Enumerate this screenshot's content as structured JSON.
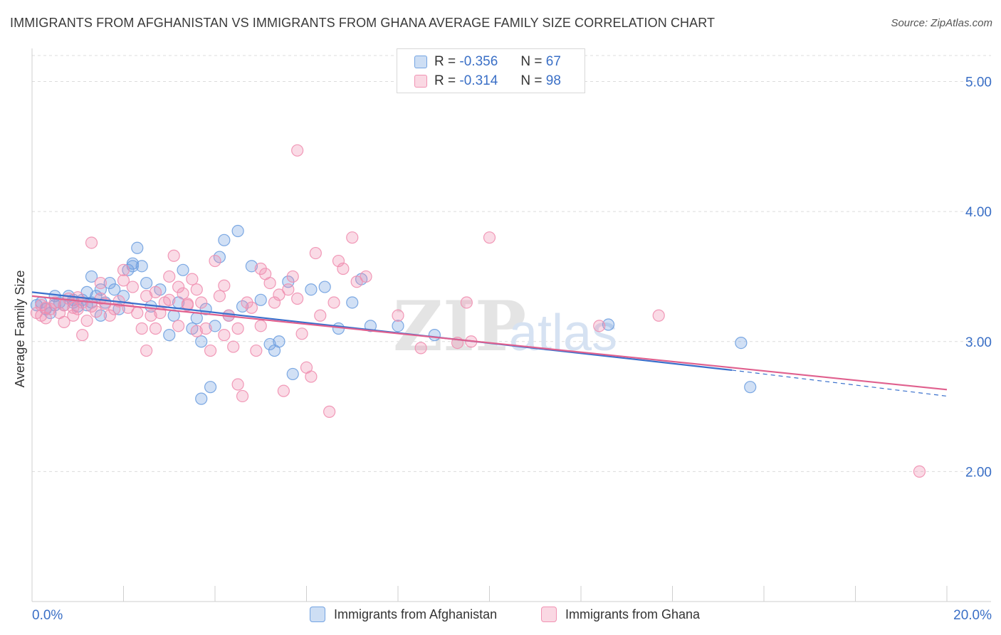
{
  "title": "IMMIGRANTS FROM AFGHANISTAN VS IMMIGRANTS FROM GHANA AVERAGE FAMILY SIZE CORRELATION CHART",
  "source": "Source: ZipAtlas.com",
  "watermark": {
    "zip": "ZIP",
    "atlas": "atlas"
  },
  "legend": {
    "rows": [
      {
        "r_label": "R =",
        "r_value": "-0.356",
        "n_label": "N =",
        "n_value": "67",
        "color": "#6fa0e0"
      },
      {
        "r_label": "R =",
        "r_value": "-0.314",
        "n_label": "N =",
        "n_value": "98",
        "color": "#f08fb0"
      }
    ]
  },
  "chart_data": {
    "type": "scatter",
    "ylabel": "Average Family Size",
    "xlim": [
      0,
      20
    ],
    "ylim": [
      1.0,
      5.2
    ],
    "x_tick_labels": {
      "min": "0.0%",
      "max": "20.0%"
    },
    "y_ticks": [
      2.0,
      3.0,
      4.0,
      5.0
    ],
    "y_tick_labels": [
      "2.00",
      "3.00",
      "4.00",
      "5.00"
    ],
    "grid": "horizontal dashed",
    "series": [
      {
        "name": "Immigrants from Afghanistan",
        "color": "#6fa0e0",
        "line_color": "#3a70cc",
        "trend": {
          "x0": 0,
          "y0": 3.38,
          "x1": 15.3,
          "y1": 2.78,
          "dash_to_x": 20,
          "dash_to_y": 2.58
        },
        "points": [
          [
            0.1,
            3.28
          ],
          [
            0.2,
            3.3
          ],
          [
            0.3,
            3.25
          ],
          [
            0.4,
            3.22
          ],
          [
            0.5,
            3.35
          ],
          [
            0.6,
            3.3
          ],
          [
            0.7,
            3.28
          ],
          [
            0.8,
            3.35
          ],
          [
            0.9,
            3.3
          ],
          [
            1.0,
            3.27
          ],
          [
            1.1,
            3.32
          ],
          [
            1.2,
            3.38
          ],
          [
            1.3,
            3.5
          ],
          [
            1.4,
            3.35
          ],
          [
            1.5,
            3.2
          ],
          [
            1.6,
            3.3
          ],
          [
            1.7,
            3.45
          ],
          [
            1.8,
            3.4
          ],
          [
            1.3,
            3.3
          ],
          [
            0.5,
            3.28
          ],
          [
            0.9,
            3.32
          ],
          [
            1.2,
            3.28
          ],
          [
            1.5,
            3.4
          ],
          [
            1.9,
            3.25
          ],
          [
            2.0,
            3.35
          ],
          [
            2.2,
            3.6
          ],
          [
            2.4,
            3.58
          ],
          [
            2.1,
            3.55
          ],
          [
            2.5,
            3.45
          ],
          [
            2.6,
            3.27
          ],
          [
            2.3,
            3.72
          ],
          [
            2.8,
            3.4
          ],
          [
            3.0,
            3.05
          ],
          [
            3.1,
            3.2
          ],
          [
            3.2,
            3.3
          ],
          [
            2.2,
            3.58
          ],
          [
            3.5,
            3.1
          ],
          [
            3.7,
            3.0
          ],
          [
            3.8,
            3.25
          ],
          [
            3.3,
            3.55
          ],
          [
            4.0,
            3.12
          ],
          [
            4.2,
            3.78
          ],
          [
            4.3,
            3.2
          ],
          [
            4.5,
            3.85
          ],
          [
            4.6,
            3.27
          ],
          [
            4.8,
            3.58
          ],
          [
            5.0,
            3.32
          ],
          [
            5.2,
            2.98
          ],
          [
            5.3,
            2.93
          ],
          [
            5.4,
            3.0
          ],
          [
            5.6,
            3.46
          ],
          [
            5.7,
            2.75
          ],
          [
            3.6,
            3.18
          ],
          [
            4.1,
            3.65
          ],
          [
            3.9,
            2.65
          ],
          [
            3.7,
            2.56
          ],
          [
            6.1,
            3.4
          ],
          [
            6.4,
            3.42
          ],
          [
            6.7,
            3.1
          ],
          [
            7.2,
            3.48
          ],
          [
            7.0,
            3.3
          ],
          [
            7.4,
            3.12
          ],
          [
            8.0,
            3.12
          ],
          [
            8.8,
            3.05
          ],
          [
            12.6,
            3.13
          ],
          [
            15.5,
            2.99
          ],
          [
            15.7,
            2.65
          ]
        ]
      },
      {
        "name": "Immigrants from Ghana",
        "color": "#f08fb0",
        "line_color": "#e0608e",
        "trend": {
          "x0": 0,
          "y0": 3.35,
          "x1": 20,
          "y1": 2.63
        },
        "points": [
          [
            0.1,
            3.22
          ],
          [
            0.2,
            3.28
          ],
          [
            0.3,
            3.18
          ],
          [
            0.4,
            3.25
          ],
          [
            0.5,
            3.3
          ],
          [
            0.6,
            3.22
          ],
          [
            0.7,
            3.28
          ],
          [
            0.8,
            3.33
          ],
          [
            0.9,
            3.2
          ],
          [
            1.0,
            3.25
          ],
          [
            1.1,
            3.3
          ],
          [
            1.2,
            3.16
          ],
          [
            1.3,
            3.27
          ],
          [
            1.4,
            3.23
          ],
          [
            1.5,
            3.33
          ],
          [
            1.6,
            3.29
          ],
          [
            1.7,
            3.2
          ],
          [
            1.8,
            3.25
          ],
          [
            1.9,
            3.31
          ],
          [
            2.0,
            3.47
          ],
          [
            2.1,
            3.26
          ],
          [
            2.2,
            3.42
          ],
          [
            2.3,
            3.22
          ],
          [
            2.4,
            3.1
          ],
          [
            2.5,
            3.35
          ],
          [
            2.6,
            3.2
          ],
          [
            2.7,
            3.38
          ],
          [
            2.8,
            3.22
          ],
          [
            2.9,
            3.3
          ],
          [
            3.0,
            3.5
          ],
          [
            3.1,
            3.66
          ],
          [
            3.2,
            3.12
          ],
          [
            3.3,
            3.37
          ],
          [
            3.4,
            3.29
          ],
          [
            3.5,
            3.48
          ],
          [
            3.6,
            3.4
          ],
          [
            3.7,
            3.3
          ],
          [
            3.8,
            3.1
          ],
          [
            3.9,
            2.93
          ],
          [
            4.0,
            3.62
          ],
          [
            4.1,
            3.35
          ],
          [
            4.2,
            3.43
          ],
          [
            4.3,
            3.2
          ],
          [
            4.4,
            2.96
          ],
          [
            4.5,
            3.1
          ],
          [
            4.6,
            2.58
          ],
          [
            4.7,
            3.3
          ],
          [
            4.8,
            3.26
          ],
          [
            4.9,
            2.93
          ],
          [
            5.0,
            3.56
          ],
          [
            5.1,
            3.52
          ],
          [
            5.2,
            3.45
          ],
          [
            5.3,
            3.3
          ],
          [
            5.4,
            3.36
          ],
          [
            5.5,
            2.62
          ],
          [
            5.6,
            3.4
          ],
          [
            5.7,
            3.5
          ],
          [
            5.8,
            3.33
          ],
          [
            5.9,
            3.06
          ],
          [
            6.0,
            2.8
          ],
          [
            6.1,
            2.73
          ],
          [
            6.2,
            3.68
          ],
          [
            6.3,
            3.2
          ],
          [
            6.5,
            2.46
          ],
          [
            6.6,
            3.3
          ],
          [
            6.7,
            3.62
          ],
          [
            6.8,
            3.56
          ],
          [
            7.0,
            3.8
          ],
          [
            7.1,
            3.46
          ],
          [
            7.3,
            3.5
          ],
          [
            8.0,
            3.2
          ],
          [
            8.5,
            2.95
          ],
          [
            9.3,
            2.99
          ],
          [
            9.5,
            3.3
          ],
          [
            9.6,
            3.0
          ],
          [
            10.0,
            3.8
          ],
          [
            12.4,
            3.12
          ],
          [
            13.7,
            3.2
          ],
          [
            5.8,
            4.47
          ],
          [
            19.4,
            2.0
          ],
          [
            1.1,
            3.05
          ],
          [
            1.3,
            3.76
          ],
          [
            2.0,
            3.55
          ],
          [
            2.5,
            2.93
          ],
          [
            2.7,
            3.1
          ],
          [
            3.0,
            3.32
          ],
          [
            3.2,
            3.42
          ],
          [
            3.4,
            3.28
          ],
          [
            3.6,
            3.08
          ],
          [
            4.2,
            3.05
          ],
          [
            4.5,
            2.67
          ],
          [
            5.0,
            3.12
          ],
          [
            0.3,
            3.26
          ],
          [
            0.7,
            3.15
          ],
          [
            1.0,
            3.34
          ],
          [
            1.5,
            3.45
          ],
          [
            0.2,
            3.2
          ],
          [
            0.9,
            3.26
          ]
        ]
      }
    ]
  }
}
